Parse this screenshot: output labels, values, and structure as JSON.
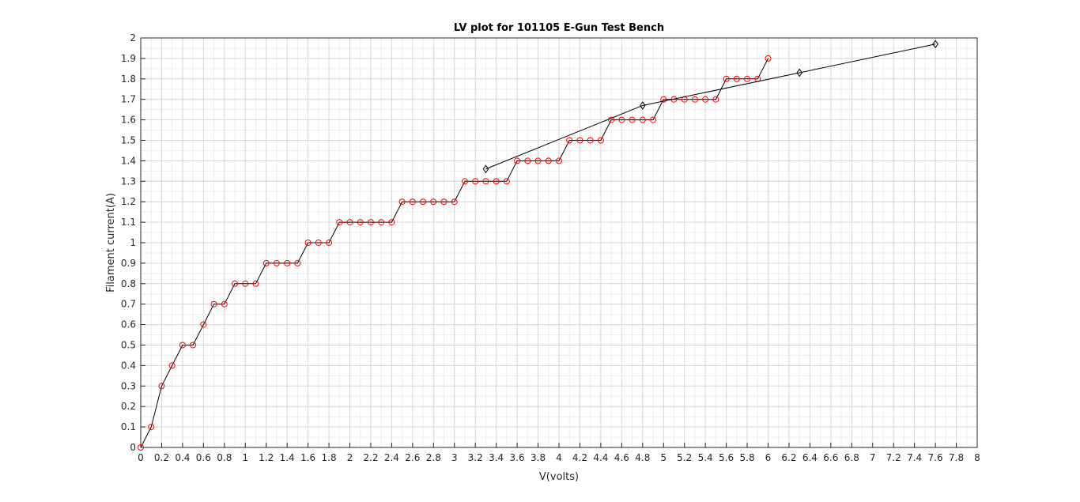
{
  "chart_data": {
    "type": "line",
    "title": "LV plot for 101105 E-Gun Test Bench",
    "xlabel": "V(volts)",
    "ylabel": "Filament current(A)",
    "xlim": [
      0,
      8
    ],
    "ylim": [
      0,
      2
    ],
    "x_ticks": [
      0,
      0.2,
      0.4,
      0.6,
      0.8,
      1,
      1.2,
      1.4,
      1.6,
      1.8,
      2,
      2.2,
      2.4,
      2.6,
      2.8,
      3,
      3.2,
      3.4,
      3.6,
      3.8,
      4,
      4.2,
      4.4,
      4.6,
      4.8,
      5,
      5.2,
      5.4,
      5.6,
      5.8,
      6,
      6.2,
      6.4,
      6.6,
      6.8,
      7,
      7.2,
      7.4,
      7.6,
      7.8,
      8
    ],
    "y_ticks": [
      0,
      0.1,
      0.2,
      0.3,
      0.4,
      0.5,
      0.6,
      0.7,
      0.8,
      0.9,
      1,
      1.1,
      1.2,
      1.3,
      1.4,
      1.5,
      1.6,
      1.7,
      1.8,
      1.9,
      2
    ],
    "grid": true,
    "series": [
      {
        "marker": "circle",
        "marker_color": "#ff0000",
        "line_color": "#000000",
        "x": [
          0,
          0.1,
          0.2,
          0.3,
          0.4,
          0.5,
          0.6,
          0.7,
          0.8,
          0.9,
          1.0,
          1.1,
          1.2,
          1.3,
          1.4,
          1.5,
          1.6,
          1.7,
          1.8,
          1.9,
          2.0,
          2.1,
          2.2,
          2.3,
          2.4,
          2.5,
          2.6,
          2.7,
          2.8,
          2.9,
          3.0,
          3.1,
          3.2,
          3.3,
          3.4,
          3.5,
          3.6,
          3.7,
          3.8,
          3.9,
          4.0,
          4.1,
          4.2,
          4.3,
          4.4,
          4.5,
          4.6,
          4.7,
          4.8,
          4.9,
          5.0,
          5.1,
          5.2,
          5.3,
          5.4,
          5.5,
          5.6,
          5.7,
          5.8,
          5.9,
          6.0
        ],
        "y": [
          0,
          0.1,
          0.3,
          0.4,
          0.5,
          0.5,
          0.6,
          0.7,
          0.7,
          0.8,
          0.8,
          0.8,
          0.9,
          0.9,
          0.9,
          0.9,
          1.0,
          1.0,
          1.0,
          1.1,
          1.1,
          1.1,
          1.1,
          1.1,
          1.1,
          1.2,
          1.2,
          1.2,
          1.2,
          1.2,
          1.2,
          1.3,
          1.3,
          1.3,
          1.3,
          1.3,
          1.4,
          1.4,
          1.4,
          1.4,
          1.4,
          1.5,
          1.5,
          1.5,
          1.5,
          1.6,
          1.6,
          1.6,
          1.6,
          1.6,
          1.7,
          1.7,
          1.7,
          1.7,
          1.7,
          1.7,
          1.8,
          1.8,
          1.8,
          1.8,
          1.9
        ]
      },
      {
        "marker": "diamond",
        "marker_color": "#000000",
        "line_color": "#000000",
        "x": [
          3.3,
          4.8,
          6.3,
          7.6
        ],
        "y": [
          1.36,
          1.67,
          1.83,
          1.97
        ]
      }
    ]
  }
}
